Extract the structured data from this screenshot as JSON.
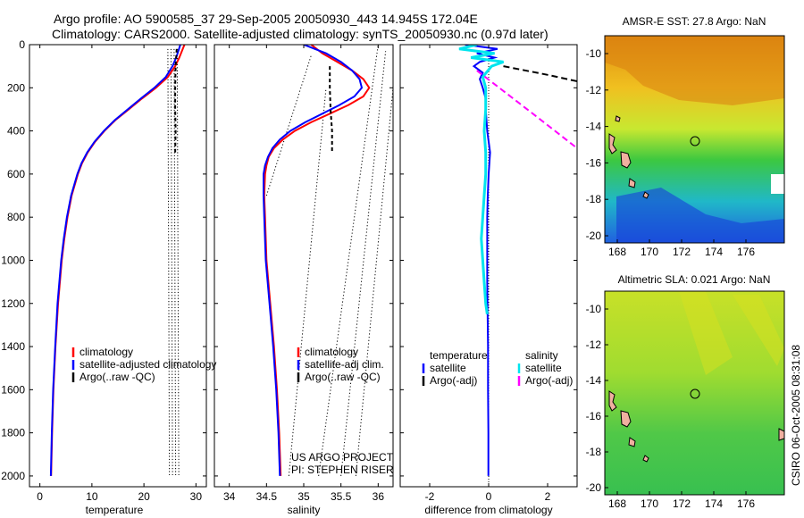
{
  "header": {
    "title_line1": "Argo profile: AO 5900585_37 29-Sep-2005 20050930_443 14.945S 172.04E",
    "title_line2": "Climatology: CARS2000. Satellite-adjusted climatology: synTS_20050930.nc (0.97d later)"
  },
  "sidepanels": {
    "sst_title": "AMSR-E SST: 27.8 Argo: NaN",
    "sla_title": "Altimetric SLA: 0.021 Argo: NaN",
    "credit": "CSIRO 06-Oct-2005 08:31:08",
    "lat_ticks": [
      "-10",
      "-12",
      "-14",
      "-16",
      "-18",
      "-20"
    ],
    "lon_ticks": [
      "168",
      "170",
      "172",
      "174",
      "176"
    ]
  },
  "chart_data": [
    {
      "type": "line",
      "id": "temperature",
      "xlabel": "temperature",
      "xlim": [
        -2,
        32
      ],
      "ylim": [
        2050,
        0
      ],
      "xticks": [
        0,
        10,
        20,
        30
      ],
      "yticks": [
        0,
        200,
        400,
        600,
        800,
        1000,
        1200,
        1400,
        1600,
        1800,
        2000
      ],
      "legend": {
        "position": "lower-middle",
        "entries": [
          "climatology",
          "satellite-adjusted climatology",
          "Argo(..raw -QC)"
        ]
      },
      "series": [
        {
          "name": "climatology",
          "color": "#ff0000",
          "depth": [
            0,
            30,
            60,
            100,
            150,
            200,
            250,
            300,
            350,
            400,
            450,
            500,
            550,
            600,
            700,
            800,
            900,
            1000,
            1200,
            1400,
            1600,
            1800,
            2000
          ],
          "values": [
            27.8,
            27.3,
            26.8,
            26.0,
            24.6,
            22.3,
            19.6,
            17.1,
            14.5,
            12.4,
            10.6,
            9.2,
            8.1,
            7.3,
            6.1,
            5.3,
            4.7,
            4.2,
            3.5,
            3.0,
            2.6,
            2.35,
            2.15
          ]
        },
        {
          "name": "satellite-adjusted climatology",
          "color": "#0000ff",
          "depth": [
            0,
            30,
            60,
            100,
            150,
            200,
            250,
            300,
            350,
            400,
            450,
            500,
            550,
            600,
            700,
            800,
            900,
            1000,
            1200,
            1400,
            1600,
            1800,
            2000
          ],
          "values": [
            27.0,
            26.6,
            26.2,
            25.5,
            24.2,
            22.0,
            19.4,
            16.9,
            14.4,
            12.3,
            10.5,
            9.1,
            8.0,
            7.2,
            6.0,
            5.2,
            4.6,
            4.1,
            3.4,
            2.95,
            2.55,
            2.3,
            2.1
          ]
        },
        {
          "name": "Argo(..raw -QC)",
          "color": "#000000",
          "depth": [
            20,
            100,
            200,
            300,
            400,
            500
          ],
          "values": [
            26.3,
            26.1,
            26.0,
            26.0,
            26.1,
            26.0
          ]
        }
      ]
    },
    {
      "type": "line",
      "id": "salinity",
      "xlabel": "salinity",
      "xlim": [
        33.8,
        36.2
      ],
      "ylim": [
        2050,
        0
      ],
      "xticks": [
        34,
        34.5,
        35,
        35.5,
        36
      ],
      "legend": {
        "position": "lower-right",
        "entries": [
          "climatology",
          "satellite-adj clim.",
          "Argo(..raw -QC)"
        ]
      },
      "annotations": [
        "US ARGO PROJECT",
        "PI: STEPHEN RISER"
      ],
      "series": [
        {
          "name": "climatology",
          "color": "#ff0000",
          "depth": [
            0,
            40,
            80,
            120,
            160,
            200,
            240,
            280,
            320,
            360,
            400,
            440,
            480,
            520,
            560,
            600,
            700,
            800,
            1000,
            1200,
            1400,
            1600,
            1800,
            2000
          ],
          "values": [
            35.1,
            35.25,
            35.45,
            35.65,
            35.8,
            35.88,
            35.8,
            35.6,
            35.35,
            35.1,
            34.88,
            34.72,
            34.6,
            34.53,
            34.5,
            34.48,
            34.47,
            34.48,
            34.5,
            34.55,
            34.6,
            34.64,
            34.67,
            34.69
          ]
        },
        {
          "name": "satellite-adj clim.",
          "color": "#0000ff",
          "depth": [
            0,
            40,
            80,
            120,
            160,
            200,
            240,
            280,
            320,
            360,
            400,
            440,
            480,
            520,
            560,
            600,
            700,
            800,
            1000,
            1200,
            1400,
            1600,
            1800,
            2000
          ],
          "values": [
            35.0,
            35.3,
            35.5,
            35.65,
            35.75,
            35.78,
            35.68,
            35.48,
            35.25,
            35.02,
            34.82,
            34.68,
            34.58,
            34.52,
            34.48,
            34.46,
            34.46,
            34.47,
            34.49,
            34.54,
            34.59,
            34.63,
            34.66,
            34.68
          ]
        },
        {
          "name": "Argo(..raw -QC)",
          "color": "#000000",
          "depth": [
            100,
            200,
            300,
            400,
            500
          ],
          "values": [
            35.35,
            35.35,
            35.36,
            35.38,
            35.38
          ]
        }
      ]
    },
    {
      "type": "line",
      "id": "difference",
      "xlabel": "difference from climatology",
      "xlim": [
        -3,
        3
      ],
      "ylim": [
        2050,
        0
      ],
      "xticks": [
        -2,
        0,
        2
      ],
      "legend": {
        "position": "lower",
        "entries": [
          "temperature",
          "satellite",
          "Argo(-adj)",
          "salinity",
          "satellite",
          "Argo(-adj)"
        ]
      },
      "series": [
        {
          "name": "satellite",
          "color": "#0000ff",
          "depth": [
            0,
            20,
            40,
            60,
            80,
            100,
            130,
            160,
            200,
            250,
            300,
            400,
            500,
            600,
            700,
            800,
            900,
            1000,
            1100,
            1200,
            1300,
            1400,
            1600,
            1800,
            2000
          ],
          "values": [
            -0.8,
            0.3,
            -0.4,
            0.2,
            -0.3,
            -0.5,
            -0.2,
            -0.3,
            -0.2,
            -0.1,
            -0.1,
            -0.05,
            0.05,
            0.0,
            -0.03,
            -0.05,
            -0.05,
            -0.05,
            -0.05,
            -0.04,
            -0.03,
            -0.02,
            -0.02,
            -0.01,
            -0.01
          ]
        },
        {
          "name": "satellite",
          "color": "#00e5ee",
          "depth": [
            0,
            20,
            40,
            60,
            80,
            100,
            150,
            200,
            300,
            400,
            500,
            600,
            700,
            800,
            900,
            1000,
            1100,
            1200,
            1250
          ],
          "values": [
            -0.4,
            -1.0,
            0.2,
            -0.6,
            0.5,
            0.1,
            -0.2,
            -0.1,
            -0.1,
            -0.15,
            -0.1,
            -0.1,
            -0.15,
            -0.2,
            -0.25,
            -0.2,
            -0.15,
            -0.1,
            -0.05
          ]
        },
        {
          "name": "Argo(-adj)",
          "color": "#000000",
          "style": "dashed",
          "depth": [
            100,
            140,
            170
          ],
          "values": [
            0.5,
            2.0,
            3.0
          ]
        },
        {
          "name": "Argo(-adj)",
          "color": "#ff00ff",
          "style": "dashed",
          "depth": [
            120,
            320,
            480
          ],
          "values": [
            -0.4,
            1.5,
            3.0
          ]
        }
      ]
    }
  ]
}
